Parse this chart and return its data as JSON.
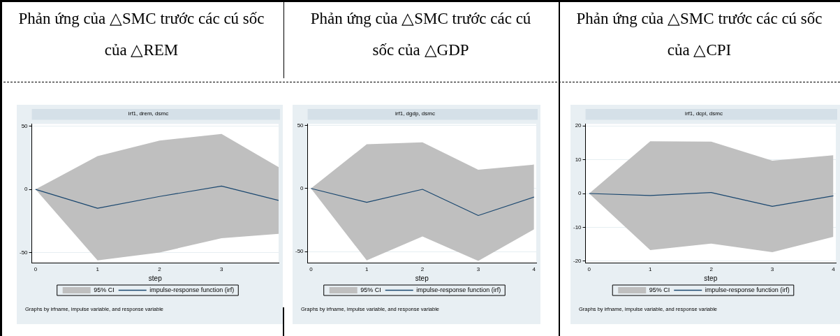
{
  "chart_data": [
    {
      "type": "line",
      "title": "Phản ứng của △SMC trước các cú sốc của △REM",
      "subtitle": "irf1, drem, dsmc",
      "xlabel": "step",
      "x": [
        0,
        1,
        2,
        3,
        3.92
      ],
      "xlim": [
        -0.06,
        3.92
      ],
      "xticks": [
        0,
        1,
        2,
        3
      ],
      "ylim": [
        -58,
        51.5
      ],
      "yticks": [
        -50,
        0,
        50
      ],
      "grid": "y",
      "legend": "bottom",
      "annotations": [
        "Graphs by irfname, impulse variable, and response variable"
      ],
      "series": [
        {
          "name": "95% CI",
          "type": "area",
          "color": "#bfbfbf",
          "values": [
            null,
            null,
            null,
            null,
            null
          ]
        },
        {
          "name": "impulse-response function (irf)",
          "type": "line",
          "color": "#1a476f",
          "values": [
            0,
            -14.9,
            -5.6,
            2.6,
            -8.7
          ],
          "lower": [
            0,
            -56,
            -49.8,
            -38.5,
            -35
          ],
          "upper": [
            0,
            26.2,
            38.5,
            43.7,
            17.5
          ]
        }
      ]
    },
    {
      "type": "line",
      "title": "Phản ứng của △SMC trước các cú sốc của △GDP",
      "subtitle": "irf1, dgdp, dsmc",
      "xlabel": "step",
      "x": [
        0,
        1,
        2,
        3,
        4
      ],
      "xlim": [
        -0.06,
        4.04
      ],
      "xticks": [
        0,
        1,
        2,
        3,
        4
      ],
      "ylim": [
        -59,
        51
      ],
      "yticks": [
        -50,
        0,
        50
      ],
      "grid": "y",
      "legend": "bottom",
      "annotations": [
        "Graphs by irfname, impulse variable, and response variable"
      ],
      "series": [
        {
          "name": "95% CI",
          "type": "area",
          "color": "#bfbfbf",
          "values": [
            null,
            null,
            null,
            null,
            null
          ]
        },
        {
          "name": "impulse-response function (irf)",
          "type": "line",
          "color": "#1a476f",
          "values": [
            0,
            -11,
            -0.7,
            -21.4,
            -6.8
          ],
          "lower": [
            0,
            -57,
            -38,
            -57.4,
            -32.4
          ],
          "upper": [
            0,
            35,
            36.5,
            14.8,
            18.9
          ]
        }
      ]
    },
    {
      "type": "line",
      "title": "Phản ứng của △SMC trước các cú sốc của △CPI",
      "subtitle": "irf1, dcpi, dsmc",
      "xlabel": "step",
      "x": [
        0,
        1,
        2,
        3,
        4
      ],
      "xlim": [
        -0.06,
        4.04
      ],
      "xticks": [
        0,
        1,
        2,
        3,
        4
      ],
      "ylim": [
        -20.5,
        20.5
      ],
      "yticks": [
        -20,
        -10,
        0,
        10,
        20
      ],
      "grid": "y",
      "legend": "bottom",
      "annotations": [
        "Graphs by irfname, impulse variable, and response variable"
      ],
      "series": [
        {
          "name": "95% CI",
          "type": "area",
          "color": "#bfbfbf",
          "values": [
            null,
            null,
            null,
            null,
            null
          ]
        },
        {
          "name": "impulse-response function (irf)",
          "type": "line",
          "color": "#1a476f",
          "values": [
            0,
            -0.6,
            0.3,
            -3.8,
            -0.7
          ],
          "lower": [
            0,
            -16.7,
            -14.8,
            -17.3,
            -12.8
          ],
          "upper": [
            0,
            15.4,
            15.3,
            9.7,
            11.3
          ]
        }
      ]
    }
  ]
}
